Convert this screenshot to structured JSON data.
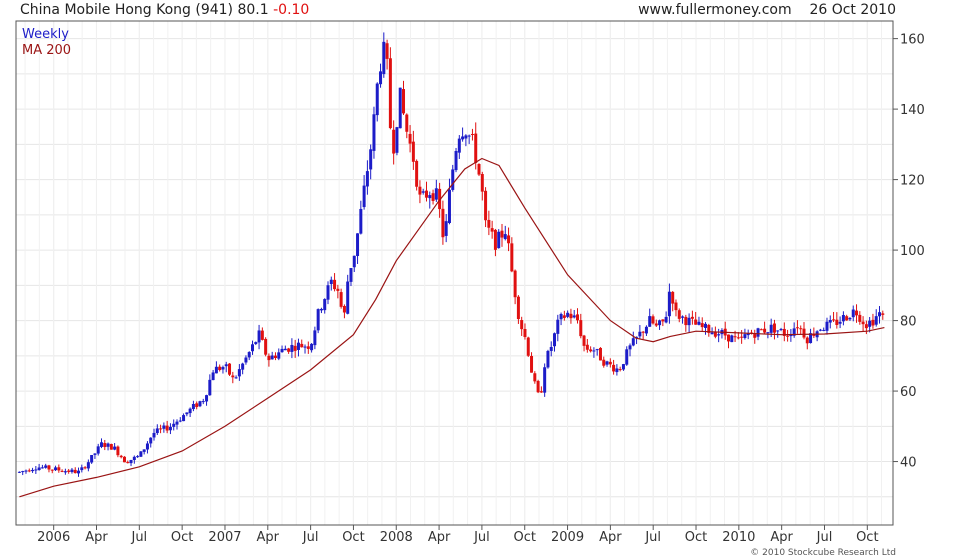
{
  "header": {
    "title": "China Mobile Hong Kong (941)",
    "price": "80.1",
    "change": "-0.10",
    "site": "www.fullermoney.com",
    "date": "26 Oct 2010"
  },
  "legend": {
    "weekly": "Weekly",
    "ma": "MA 200"
  },
  "copyright": "© 2010 Stockcube Research Ltd",
  "colors": {
    "up": "#1c1cc8",
    "down": "#e01010",
    "ma": "#9a1414",
    "grid": "#e6e6e6",
    "frame": "#555555"
  },
  "chart_data": {
    "type": "candlestick",
    "frequency": "weekly",
    "y_axis_side": "right",
    "ylim": [
      22,
      165
    ],
    "yticks": [
      40,
      60,
      80,
      100,
      120,
      140,
      160
    ],
    "xlim": [
      2005.78,
      2010.9
    ],
    "xticks": [
      {
        "x": 2006.0,
        "label": "2006"
      },
      {
        "x": 2006.25,
        "label": "Apr"
      },
      {
        "x": 2006.5,
        "label": "Jul"
      },
      {
        "x": 2006.75,
        "label": "Oct"
      },
      {
        "x": 2007.0,
        "label": "2007"
      },
      {
        "x": 2007.25,
        "label": "Apr"
      },
      {
        "x": 2007.5,
        "label": "Jul"
      },
      {
        "x": 2007.75,
        "label": "Oct"
      },
      {
        "x": 2008.0,
        "label": "2008"
      },
      {
        "x": 2008.25,
        "label": "Apr"
      },
      {
        "x": 2008.5,
        "label": "Jul"
      },
      {
        "x": 2008.75,
        "label": "Oct"
      },
      {
        "x": 2009.0,
        "label": "2009"
      },
      {
        "x": 2009.25,
        "label": "Apr"
      },
      {
        "x": 2009.5,
        "label": "Jul"
      },
      {
        "x": 2009.75,
        "label": "Oct"
      },
      {
        "x": 2010.0,
        "label": "2010"
      },
      {
        "x": 2010.25,
        "label": "Apr"
      },
      {
        "x": 2010.5,
        "label": "Jul"
      },
      {
        "x": 2010.75,
        "label": "Oct"
      }
    ],
    "price_path": [
      [
        2005.8,
        37
      ],
      [
        2005.9,
        38.5
      ],
      [
        2006.05,
        37.5
      ],
      [
        2006.15,
        37
      ],
      [
        2006.22,
        41
      ],
      [
        2006.28,
        45
      ],
      [
        2006.35,
        44
      ],
      [
        2006.42,
        40
      ],
      [
        2006.5,
        41.5
      ],
      [
        2006.58,
        48
      ],
      [
        2006.68,
        50
      ],
      [
        2006.78,
        54
      ],
      [
        2006.88,
        58
      ],
      [
        2006.93,
        66
      ],
      [
        2007.0,
        67
      ],
      [
        2007.05,
        63
      ],
      [
        2007.12,
        69
      ],
      [
        2007.2,
        76
      ],
      [
        2007.25,
        69
      ],
      [
        2007.35,
        72
      ],
      [
        2007.42,
        73
      ],
      [
        2007.5,
        73
      ],
      [
        2007.55,
        83
      ],
      [
        2007.62,
        91
      ],
      [
        2007.67,
        88
      ],
      [
        2007.69,
        78
      ],
      [
        2007.72,
        93
      ],
      [
        2007.76,
        100
      ],
      [
        2007.8,
        113
      ],
      [
        2007.86,
        132
      ],
      [
        2007.9,
        152
      ],
      [
        2007.94,
        158
      ],
      [
        2007.96,
        138
      ],
      [
        2007.98,
        128
      ],
      [
        2008.02,
        144
      ],
      [
        2008.06,
        134
      ],
      [
        2008.1,
        126
      ],
      [
        2008.14,
        114
      ],
      [
        2008.2,
        117
      ],
      [
        2008.24,
        115
      ],
      [
        2008.28,
        102
      ],
      [
        2008.32,
        120
      ],
      [
        2008.36,
        133
      ],
      [
        2008.4,
        135
      ],
      [
        2008.45,
        130
      ],
      [
        2008.47,
        125
      ],
      [
        2008.5,
        117
      ],
      [
        2008.52,
        107
      ],
      [
        2008.58,
        102
      ],
      [
        2008.64,
        106
      ],
      [
        2008.68,
        92
      ],
      [
        2008.72,
        80
      ],
      [
        2008.76,
        74
      ],
      [
        2008.8,
        63
      ],
      [
        2008.84,
        57
      ],
      [
        2008.86,
        67
      ],
      [
        2008.9,
        72
      ],
      [
        2008.95,
        80
      ],
      [
        2009.0,
        82
      ],
      [
        2009.06,
        80
      ],
      [
        2009.1,
        72
      ],
      [
        2009.15,
        72
      ],
      [
        2009.22,
        68
      ],
      [
        2009.3,
        66
      ],
      [
        2009.36,
        72
      ],
      [
        2009.42,
        76
      ],
      [
        2009.48,
        80
      ],
      [
        2009.52,
        78
      ],
      [
        2009.57,
        80
      ],
      [
        2009.6,
        90
      ],
      [
        2009.63,
        82
      ],
      [
        2009.7,
        80
      ],
      [
        2009.78,
        78
      ],
      [
        2009.85,
        77
      ],
      [
        2009.92,
        76
      ],
      [
        2010.0,
        74
      ],
      [
        2010.05,
        76
      ],
      [
        2010.12,
        77
      ],
      [
        2010.2,
        78
      ],
      [
        2010.28,
        76
      ],
      [
        2010.34,
        79
      ],
      [
        2010.4,
        75
      ],
      [
        2010.47,
        78
      ],
      [
        2010.55,
        79
      ],
      [
        2010.62,
        81
      ],
      [
        2010.68,
        83
      ],
      [
        2010.74,
        79
      ],
      [
        2010.78,
        80
      ],
      [
        2010.82,
        82
      ],
      [
        2010.85,
        80
      ]
    ],
    "ma200": [
      [
        2005.8,
        30
      ],
      [
        2006.0,
        33
      ],
      [
        2006.25,
        35.5
      ],
      [
        2006.5,
        38.5
      ],
      [
        2006.75,
        43
      ],
      [
        2007.0,
        50
      ],
      [
        2007.25,
        58
      ],
      [
        2007.5,
        66
      ],
      [
        2007.75,
        76
      ],
      [
        2007.88,
        86
      ],
      [
        2008.0,
        97
      ],
      [
        2008.25,
        114
      ],
      [
        2008.4,
        123
      ],
      [
        2008.5,
        126
      ],
      [
        2008.6,
        124
      ],
      [
        2008.75,
        112
      ],
      [
        2009.0,
        93
      ],
      [
        2009.25,
        80
      ],
      [
        2009.4,
        75
      ],
      [
        2009.5,
        74
      ],
      [
        2009.6,
        75.5
      ],
      [
        2009.75,
        77
      ],
      [
        2010.0,
        76.5
      ],
      [
        2010.25,
        76
      ],
      [
        2010.5,
        76.2
      ],
      [
        2010.75,
        77
      ],
      [
        2010.85,
        78
      ]
    ]
  }
}
